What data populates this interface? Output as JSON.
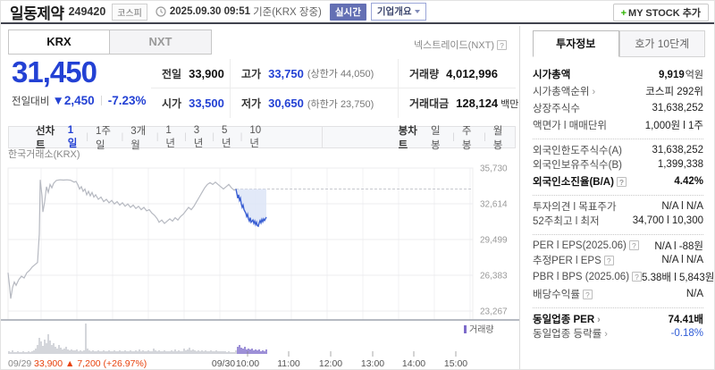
{
  "colors": {
    "down_blue": "#2341d4",
    "up_red": "#e8430e",
    "volume_purple": "#7d6bca",
    "day1_gray": "#b6b9c1",
    "area_fill": "#dde5f7",
    "dashed": "#c6c8ce"
  },
  "header": {
    "title": "일동제약",
    "code": "249420",
    "market_badge": "코스피",
    "datetime": "2025.09.30 09:51",
    "datetime_suffix": "기준(KRX 장중)",
    "realtime_badge": "실시간",
    "overview_button": "기업개요",
    "mystock_plus": "+",
    "mystock_button": "MY STOCK 추가"
  },
  "market_tabs": {
    "krx": "KRX",
    "nxt": "NXT",
    "nxt_link": "넥스트레이드(NXT)",
    "help": "?"
  },
  "price": {
    "current": "31,450",
    "change_label": "전일대비",
    "change_arrow": "▼",
    "change": "2,450",
    "change_pct": "-7.23%"
  },
  "stats": [
    {
      "label": "전일",
      "value": "33,900",
      "vclass": ""
    },
    {
      "label": "고가",
      "value": "33,750",
      "extra": "(상한가 44,050)",
      "vclass": "blue"
    },
    {
      "label": "거래량",
      "value": "4,012,996",
      "vclass": ""
    },
    {
      "label": "시가",
      "value": "33,500",
      "vclass": "blue"
    },
    {
      "label": "저가",
      "value": "30,650",
      "extra": "(하한가 23,750)",
      "vclass": "blue"
    },
    {
      "label": "거래대금",
      "value": "128,124",
      "unit": "백만",
      "vclass": ""
    }
  ],
  "toolbar": {
    "line_label": "선차트",
    "line_items": [
      {
        "label": "1일",
        "active": true
      },
      {
        "label": "1주일"
      },
      {
        "label": "3개월"
      },
      {
        "label": "1년"
      },
      {
        "label": "3년"
      },
      {
        "label": "5년"
      },
      {
        "label": "10년"
      }
    ],
    "candle_label": "봉차트",
    "candle_items": [
      {
        "label": "일봉"
      },
      {
        "label": "주봉"
      },
      {
        "label": "월봉"
      }
    ]
  },
  "chart_data": {
    "type": "line",
    "source": "한국거래소(KRX)",
    "legend": "거래량",
    "prev_close": 33900,
    "y_axis": {
      "max": 35730,
      "min": 23267,
      "tick_values": [
        35730,
        32614,
        29499,
        26383,
        23267
      ],
      "tick_labels": [
        "35,730",
        "32,614",
        "29,499",
        "26,383",
        "23,267"
      ]
    },
    "x_ticks": [
      {
        "x": 276,
        "label": "10:00"
      },
      {
        "x": 322,
        "label": "11:00"
      },
      {
        "x": 369,
        "label": "12:00"
      },
      {
        "x": 416,
        "label": "13:00"
      },
      {
        "x": 462,
        "label": "14:00"
      },
      {
        "x": 509,
        "label": "15:00"
      }
    ],
    "day1_label": "09/29",
    "day1_change": "33,900 ▲ 7,200 (+26.97%)",
    "day2_label": "09/30",
    "day2_label_x": 249,
    "series": [
      {
        "name": "09/29",
        "points": [
          [
            8,
            26600
          ],
          [
            10,
            25200
          ],
          [
            11,
            24350
          ],
          [
            13,
            25300
          ],
          [
            15,
            25800
          ],
          [
            17,
            25500
          ],
          [
            20,
            26000
          ],
          [
            23,
            26300
          ],
          [
            26,
            26150
          ],
          [
            29,
            26600
          ],
          [
            32,
            26800
          ],
          [
            35,
            27100
          ],
          [
            38,
            27300
          ],
          [
            41,
            27500
          ],
          [
            43,
            30000
          ],
          [
            44,
            34700
          ],
          [
            46,
            33300
          ],
          [
            47,
            31900
          ],
          [
            49,
            32800
          ],
          [
            51,
            34100
          ],
          [
            53,
            33600
          ],
          [
            55,
            34300
          ],
          [
            57,
            34000
          ],
          [
            59,
            34400
          ],
          [
            62,
            34650
          ],
          [
            66,
            34700
          ],
          [
            70,
            34680
          ],
          [
            74,
            34700
          ],
          [
            78,
            34660
          ],
          [
            82,
            34500
          ],
          [
            84,
            34560
          ],
          [
            86,
            34300
          ],
          [
            88,
            33900
          ],
          [
            90,
            34100
          ],
          [
            92,
            33700
          ],
          [
            94,
            33900
          ],
          [
            96,
            33400
          ],
          [
            98,
            33700
          ],
          [
            100,
            33300
          ],
          [
            102,
            33600
          ],
          [
            104,
            33200
          ],
          [
            106,
            33400
          ],
          [
            109,
            33000
          ],
          [
            112,
            33200
          ],
          [
            115,
            32800
          ],
          [
            118,
            33000
          ],
          [
            121,
            32700
          ],
          [
            124,
            32900
          ],
          [
            127,
            32600
          ],
          [
            130,
            32800
          ],
          [
            133,
            32500
          ],
          [
            136,
            32700
          ],
          [
            139,
            32400
          ],
          [
            142,
            32600
          ],
          [
            145,
            32300
          ],
          [
            148,
            32500
          ],
          [
            151,
            32200
          ],
          [
            154,
            32400
          ],
          [
            157,
            32100
          ],
          [
            160,
            32300
          ],
          [
            163,
            32000
          ],
          [
            166,
            32100
          ],
          [
            169,
            31800
          ],
          [
            172,
            31600
          ],
          [
            175,
            31300
          ],
          [
            177,
            31000
          ],
          [
            180,
            31200
          ],
          [
            183,
            30900
          ],
          [
            186,
            31100
          ],
          [
            189,
            31300
          ],
          [
            192,
            31100
          ],
          [
            195,
            31400
          ],
          [
            198,
            31200
          ],
          [
            201,
            31500
          ],
          [
            204,
            31700
          ],
          [
            207,
            32000
          ],
          [
            210,
            32300
          ],
          [
            213,
            32100
          ],
          [
            216,
            32400
          ],
          [
            219,
            32800
          ],
          [
            222,
            33200
          ],
          [
            225,
            33600
          ],
          [
            228,
            34000
          ],
          [
            231,
            34300
          ],
          [
            234,
            34450
          ],
          [
            237,
            34300
          ],
          [
            240,
            34500
          ],
          [
            243,
            34300
          ],
          [
            246,
            34100
          ],
          [
            249,
            33900
          ],
          [
            252,
            34100
          ],
          [
            255,
            34300
          ],
          [
            258,
            34000
          ],
          [
            261,
            33800
          ],
          [
            263,
            33900
          ]
        ]
      },
      {
        "name": "09/30",
        "points": [
          [
            264,
            33500
          ],
          [
            265,
            33100
          ],
          [
            266,
            33400
          ],
          [
            267,
            32900
          ],
          [
            268,
            33100
          ],
          [
            269,
            32600
          ],
          [
            270,
            32300
          ],
          [
            271,
            32500
          ],
          [
            272,
            32100
          ],
          [
            274,
            31800
          ],
          [
            275,
            31500
          ],
          [
            276,
            31700
          ],
          [
            277,
            31300
          ],
          [
            278,
            31100
          ],
          [
            279,
            31400
          ],
          [
            280,
            31000
          ],
          [
            282,
            31200
          ],
          [
            283,
            30900
          ],
          [
            284,
            31100
          ],
          [
            285,
            30800
          ],
          [
            286,
            31000
          ],
          [
            287,
            30700
          ],
          [
            288,
            30650
          ],
          [
            289,
            30950
          ],
          [
            290,
            31150
          ],
          [
            291,
            30950
          ],
          [
            292,
            31250
          ],
          [
            293,
            31050
          ],
          [
            294,
            31300
          ],
          [
            295,
            31150
          ],
          [
            296,
            31300
          ],
          [
            297,
            31450
          ]
        ]
      }
    ],
    "volume": {
      "start_x": 9,
      "step": 2,
      "day_split_x": 264,
      "heights": [
        3,
        2,
        4,
        2,
        2,
        3,
        2,
        2,
        3,
        2,
        2,
        3,
        2,
        3,
        4,
        6,
        10,
        18,
        14,
        9,
        16,
        12,
        22,
        15,
        10,
        12,
        8,
        6,
        10,
        7,
        5,
        6,
        8,
        5,
        4,
        5,
        4,
        4,
        5,
        3,
        4,
        3,
        4,
        34,
        6,
        4,
        3,
        4,
        3,
        3,
        4,
        3,
        3,
        4,
        3,
        3,
        4,
        3,
        3,
        4,
        3,
        3,
        4,
        3,
        3,
        4,
        3,
        3,
        4,
        3,
        3,
        4,
        3,
        5,
        3,
        4,
        3,
        3,
        4,
        3,
        3,
        6,
        4,
        3,
        4,
        3,
        3,
        4,
        3,
        3,
        3,
        4,
        3,
        5,
        3,
        4,
        3,
        3,
        6,
        4,
        5,
        7,
        4,
        5,
        4,
        3,
        4,
        3,
        4,
        3,
        4,
        3,
        3,
        4,
        3,
        3,
        4,
        3,
        3,
        3,
        3,
        3,
        2,
        3,
        2,
        2,
        2,
        4,
        8,
        10,
        7,
        6,
        8,
        5,
        6,
        5,
        6,
        4,
        5,
        4,
        5,
        3,
        4,
        3,
        5
      ]
    }
  },
  "sidebar": {
    "tabs": [
      {
        "label": "투자정보",
        "active": true
      },
      {
        "label": "호가 10단계"
      }
    ],
    "rows": [
      {
        "label": "시가총액",
        "value": "9,919",
        "unit": "억원",
        "bold": true
      },
      {
        "label": "시가총액순위",
        "value": "코스피 292위",
        "arrow": true
      },
      {
        "label": "상장주식수",
        "value": "31,638,252"
      },
      {
        "label": "액면가 l 매매단위",
        "value": "1,000원 l 1주"
      },
      {
        "label": "외국인한도주식수(A)",
        "value": "31,638,252",
        "group_start": true
      },
      {
        "label": "외국인보유주식수(B)",
        "value": "1,399,338"
      },
      {
        "label": "외국인소진율(B/A)",
        "value": "4.42%",
        "bold": true,
        "help": true
      },
      {
        "label": "투자의견 l 목표주가",
        "value": "N/A l N/A",
        "group_start": true
      },
      {
        "label": "52주최고 l 최저",
        "value": "34,700 l 10,300"
      },
      {
        "label": "PER l EPS(2025.06)",
        "value": "N/A l -88원",
        "help": true,
        "group_start": true
      },
      {
        "label": "추정PER l EPS",
        "value": "N/A l N/A",
        "help": true
      },
      {
        "label": "PBR l BPS (2025.06)",
        "value": "5.38배 l 5,843원",
        "help": true
      },
      {
        "label": "배당수익률",
        "value": "N/A",
        "help": true
      },
      {
        "label": "동일업종 PER",
        "value": "74.41배",
        "bold": true,
        "arrow": true,
        "group_start": true
      },
      {
        "label": "동일업종 등락률",
        "value": "-0.18%",
        "arrow": true,
        "vclass": "blue"
      }
    ]
  }
}
